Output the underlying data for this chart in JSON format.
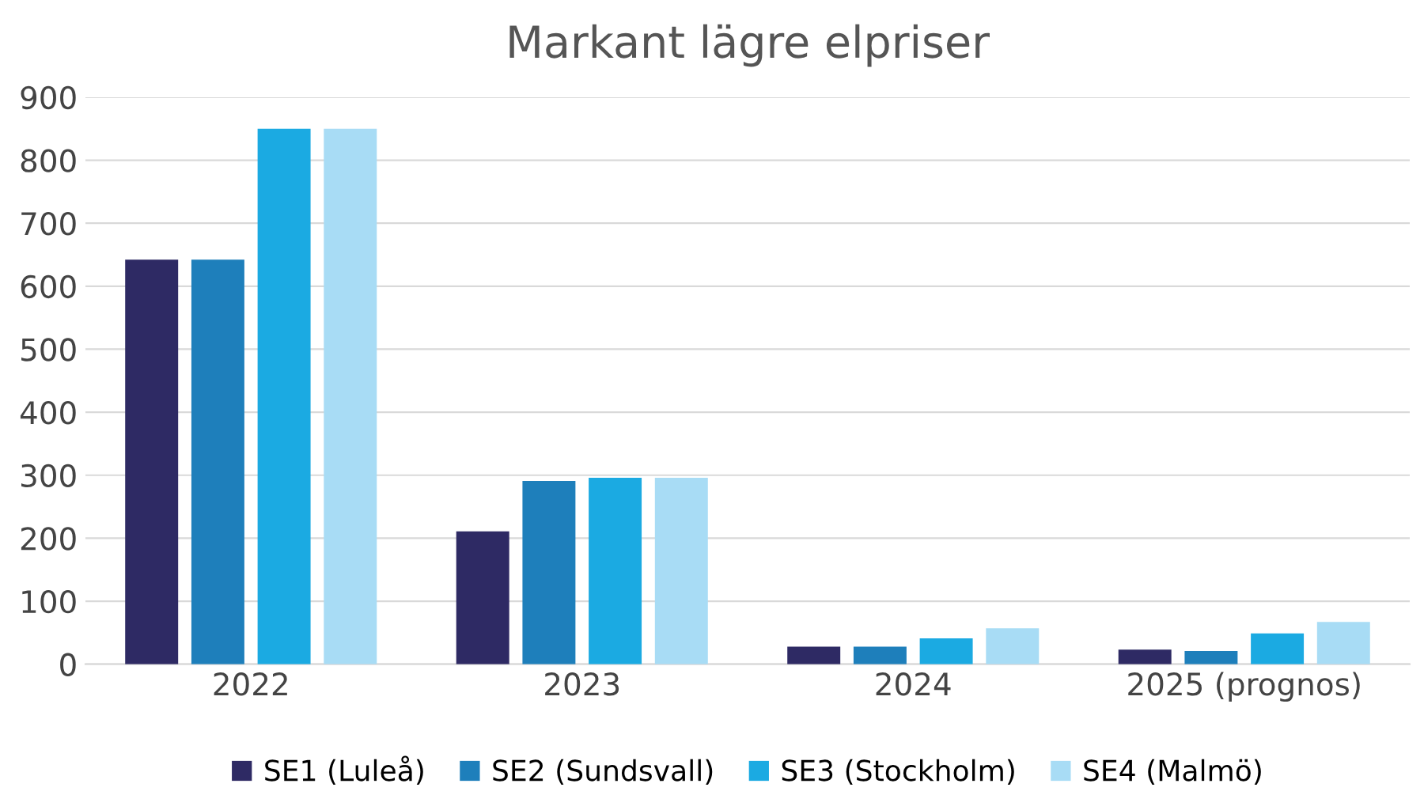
{
  "chart_data": {
    "type": "bar",
    "title": "Markant lägre elpriser",
    "categories": [
      "2022",
      "2023",
      "2024",
      "2025 (prognos)"
    ],
    "series": [
      {
        "name": "SE1 (Luleå)",
        "color": "#2e2a64",
        "values": [
          642,
          211,
          28,
          23
        ]
      },
      {
        "name": "SE2 (Sundsvall)",
        "color": "#1e7fbb",
        "values": [
          642,
          291,
          28,
          21
        ]
      },
      {
        "name": "SE3 (Stockholm)",
        "color": "#1baae2",
        "values": [
          850,
          296,
          41,
          49
        ]
      },
      {
        "name": "SE4 (Malmö)",
        "color": "#a8dcf5",
        "values": [
          850,
          296,
          57,
          67
        ]
      }
    ],
    "ylim": [
      0,
      900
    ],
    "yticks": [
      0,
      100,
      200,
      300,
      400,
      500,
      600,
      700,
      800,
      900
    ],
    "grid": "y",
    "legend": "bottom"
  }
}
